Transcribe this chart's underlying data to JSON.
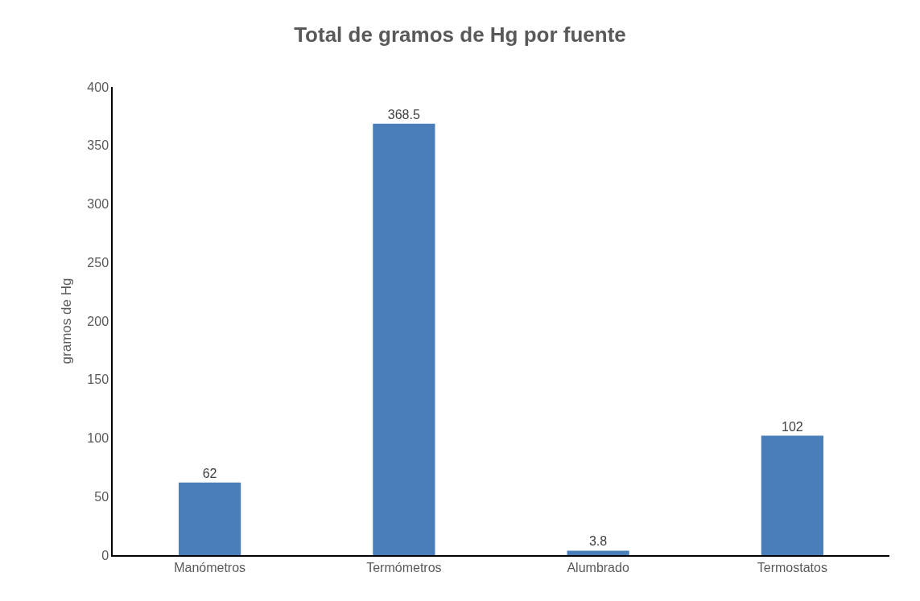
{
  "chart_data": {
    "type": "bar",
    "title": "Total de gramos de Hg por fuente",
    "ylabel": "gramos de Hg",
    "categories": [
      "Manómetros",
      "Termómetros",
      "Alumbrado",
      "Termostatos"
    ],
    "values": [
      62,
      368.5,
      3.8,
      102
    ],
    "color": "#4a7ebb",
    "ylim": [
      0,
      400
    ],
    "yticks": [
      0,
      50,
      100,
      150,
      200,
      250,
      300,
      350,
      400
    ],
    "data_labels": true,
    "grid": false,
    "legend": false
  }
}
